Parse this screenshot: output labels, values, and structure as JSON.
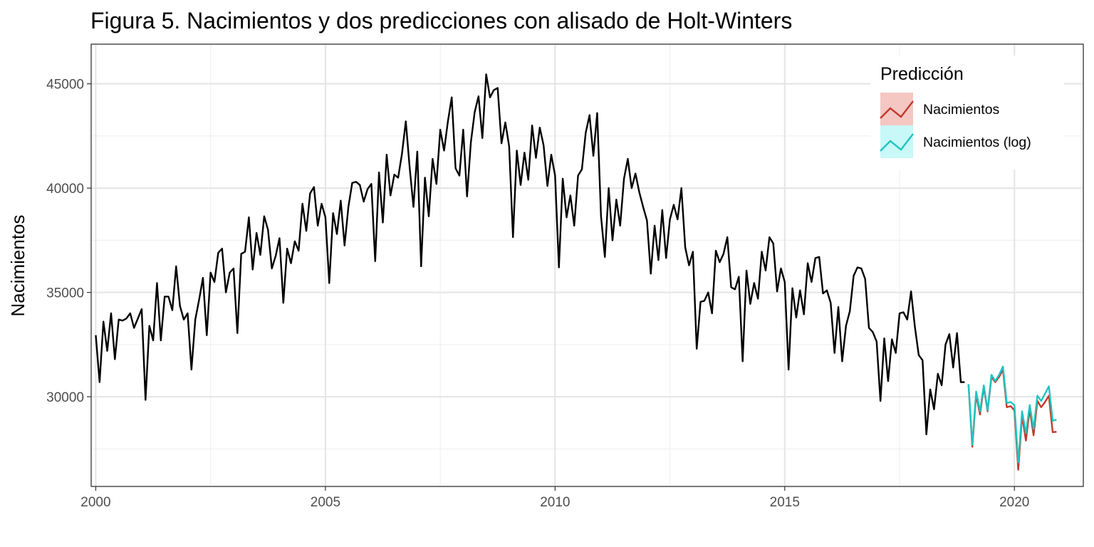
{
  "chart_data": {
    "type": "line",
    "title": "Figura 5. Nacimientos y dos predicciones con alisado de Holt-Winters",
    "xlabel": "",
    "ylabel": "Nacimientos",
    "x_start": 2000,
    "x_step_months": 1,
    "xlim": [
      1999.9,
      2021.5
    ],
    "ylim": [
      25700,
      46900
    ],
    "x_ticks": [
      2000,
      2005,
      2010,
      2015,
      2020
    ],
    "x_tick_labels": [
      "2000",
      "2005",
      "2010",
      "2015",
      "2020"
    ],
    "y_ticks": [
      30000,
      35000,
      40000,
      45000
    ],
    "y_tick_labels": [
      "30000",
      "35000",
      "40000",
      "45000"
    ],
    "grid": true,
    "legend": {
      "title": "Predicción",
      "placement": "top-right",
      "entries": [
        {
          "label": "Nacimientos",
          "color": "#c0392b",
          "fill": "#f4c7c3"
        },
        {
          "label": "Nacimientos (log)",
          "color": "#1fc4c1",
          "fill": "#c8f8f7"
        }
      ]
    },
    "observed": {
      "color": "#000000",
      "start": 2000.0,
      "values": [
        32950,
        30700,
        33600,
        32200,
        34000,
        31800,
        33700,
        33650,
        33750,
        34000,
        33300,
        33750,
        34200,
        29850,
        33400,
        32700,
        35450,
        32700,
        34800,
        34800,
        34150,
        36250,
        34350,
        33700,
        34000,
        31300,
        33700,
        34650,
        35700,
        32950,
        35950,
        35500,
        36900,
        37100,
        35000,
        35950,
        36150,
        33050,
        36850,
        36950,
        38600,
        36100,
        37850,
        36800,
        38650,
        38000,
        36150,
        36750,
        37600,
        34500,
        37100,
        36400,
        37450,
        37000,
        39250,
        37950,
        39750,
        40050,
        38200,
        39250,
        38600,
        35450,
        38800,
        37800,
        39400,
        37250,
        39100,
        40250,
        40300,
        40150,
        39350,
        39950,
        40200,
        36500,
        40750,
        38350,
        41600,
        39650,
        40650,
        40500,
        41650,
        43200,
        41000,
        39100,
        41750,
        36250,
        40500,
        38650,
        41400,
        40200,
        42800,
        41800,
        43200,
        44350,
        40950,
        40600,
        42800,
        39600,
        42200,
        43650,
        44400,
        42400,
        45450,
        44350,
        44700,
        44800,
        42150,
        43150,
        42000,
        37650,
        41800,
        40150,
        41700,
        40400,
        43000,
        41450,
        42900,
        42050,
        40100,
        41600,
        40600,
        36200,
        40450,
        38600,
        39650,
        38200,
        40600,
        40900,
        42650,
        43500,
        41550,
        43600,
        38650,
        36700,
        40000,
        37500,
        39450,
        38200,
        40450,
        41400,
        40000,
        40700,
        39800,
        39100,
        38450,
        35900,
        38200,
        36550,
        38950,
        36650,
        38500,
        39200,
        38500,
        40000,
        37150,
        36300,
        36950,
        32300,
        34550,
        34600,
        35000,
        34000,
        37000,
        36450,
        36850,
        37650,
        35250,
        35150,
        35750,
        31700,
        36050,
        34450,
        35450,
        34700,
        36950,
        36050,
        37650,
        37350,
        35050,
        36150,
        35500,
        31300,
        35200,
        33800,
        35100,
        33950,
        36400,
        35500,
        36650,
        36700,
        34950,
        35100,
        34500,
        32100,
        34300,
        31700,
        33400,
        34100,
        35800,
        36200,
        36150,
        35650,
        33300,
        33100,
        32650,
        29800,
        32800,
        30750,
        32750,
        32100,
        34000,
        34050,
        33700,
        35050,
        33350,
        32000,
        31750,
        28200,
        30350,
        29400,
        31100,
        30550,
        32500,
        33000,
        31400,
        33050,
        30700,
        30700
      ]
    },
    "series": [
      {
        "name": "Nacimientos",
        "color": "#c0392b",
        "start": 2019.0,
        "values": [
          30600,
          27600,
          30100,
          29150,
          30450,
          29300,
          30950,
          30700,
          30950,
          31300,
          29500,
          29550,
          29350,
          26500,
          29100,
          27900,
          29400,
          28150,
          29800,
          29500,
          29750,
          30050,
          28300,
          28320
        ]
      },
      {
        "name": "Nacimientos (log)",
        "color": "#1fc4c1",
        "start": 2019.0,
        "values": [
          30600,
          27700,
          30250,
          29300,
          30550,
          29350,
          31050,
          30750,
          31050,
          31450,
          29700,
          29750,
          29600,
          26850,
          29300,
          28250,
          29600,
          28450,
          30050,
          29800,
          30150,
          30500,
          28850,
          28900
        ]
      }
    ]
  }
}
